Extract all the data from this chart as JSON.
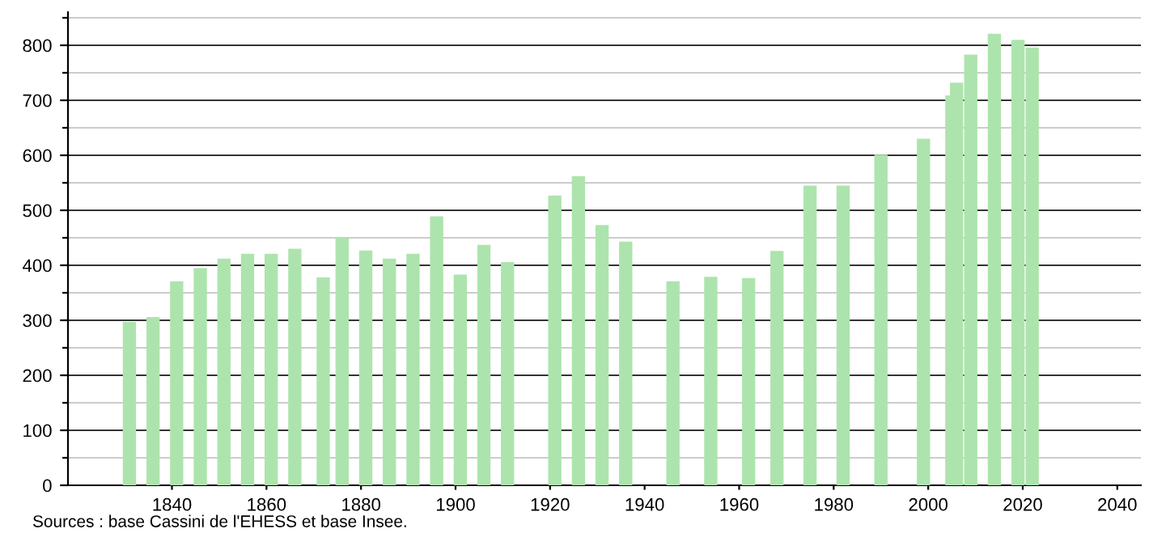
{
  "chart_data": {
    "type": "bar",
    "x": [
      1831,
      1836,
      1841,
      1846,
      1851,
      1856,
      1861,
      1866,
      1872,
      1876,
      1881,
      1886,
      1891,
      1896,
      1901,
      1906,
      1911,
      1921,
      1926,
      1931,
      1936,
      1946,
      1954,
      1962,
      1968,
      1975,
      1982,
      1990,
      1999,
      2005,
      2006,
      2009,
      2014,
      2019,
      2022
    ],
    "values": [
      297,
      306,
      371,
      395,
      412,
      421,
      421,
      430,
      378,
      450,
      427,
      412,
      421,
      489,
      383,
      437,
      406,
      527,
      562,
      473,
      443,
      371,
      379,
      377,
      426,
      545,
      545,
      601,
      630,
      709,
      732,
      783,
      821,
      810,
      796
    ],
    "color": "#ade4ad",
    "xlim": [
      1818,
      2045
    ],
    "xticks": [
      1840,
      1860,
      1880,
      1900,
      1920,
      1940,
      1960,
      1980,
      2000,
      2020,
      2040
    ],
    "ylim": [
      0,
      860
    ],
    "yticks": [
      0,
      {
        "value": 50,
        "label": null
      },
      100,
      {
        "value": 150,
        "label": null
      },
      200,
      {
        "value": 250,
        "label": null
      },
      300,
      {
        "value": 350,
        "label": null
      },
      400,
      {
        "value": 450,
        "label": null
      },
      500,
      {
        "value": 550,
        "label": null
      },
      600,
      {
        "value": 650,
        "label": null
      },
      700,
      {
        "value": 750,
        "label": null
      },
      800,
      {
        "value": 850,
        "label": null
      }
    ],
    "grid": "y",
    "annotations": [
      "Sources : base Cassini de l'EHESS et base Insee."
    ]
  }
}
